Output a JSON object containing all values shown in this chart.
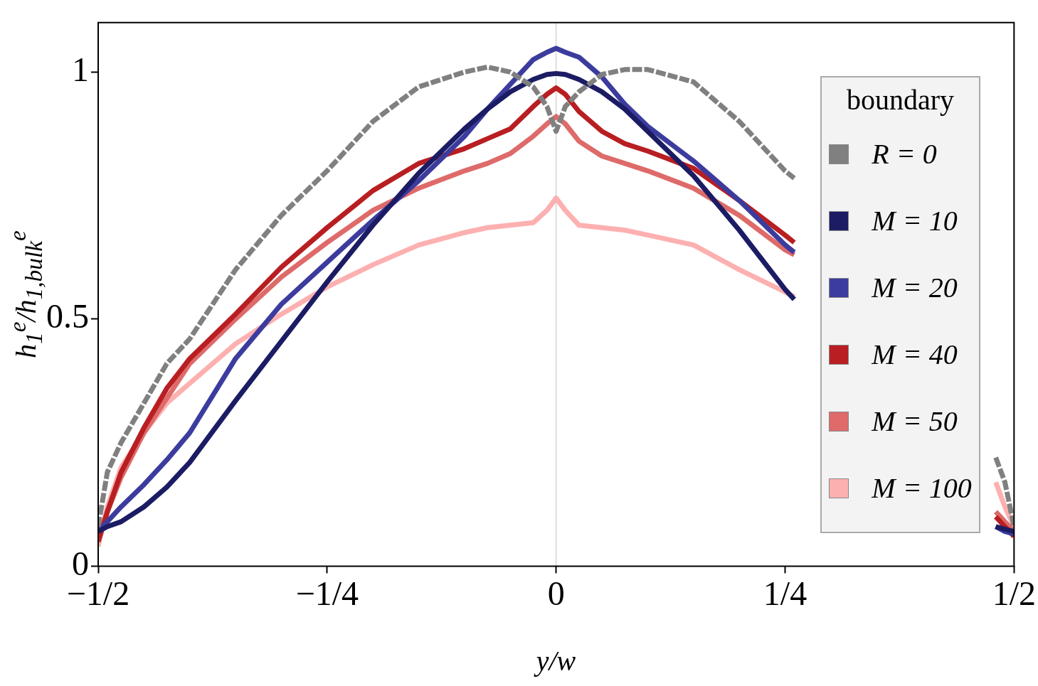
{
  "chart_data": {
    "type": "line",
    "xlabel": "y/w",
    "ylabel": "h$_{1}$$^{e}$/h$_{1,bulk}$$^{e}$",
    "legend_title": "boundary",
    "legend": "right",
    "grid": false,
    "marker": "none",
    "line_style": "solid",
    "xlim": [
      -0.5,
      0.5
    ],
    "xticks": [
      {
        "value": -0.5,
        "label": "−1/2"
      },
      {
        "value": -0.25,
        "label": "−1/4"
      },
      0,
      {
        "value": 0.25,
        "label": "1/4"
      },
      {
        "value": 0.5,
        "label": "1/2"
      }
    ],
    "ylim": [
      0,
      1.1
    ],
    "yticks": [
      0,
      0.5,
      1
    ],
    "ref_lines": [
      {
        "axis": "x",
        "value": 0,
        "color": "#cccccc"
      }
    ],
    "x": [
      -0.5,
      -0.49,
      -0.475,
      -0.45,
      -0.425,
      -0.4,
      -0.35,
      -0.3,
      -0.25,
      -0.2,
      -0.15,
      -0.1,
      -0.075,
      -0.05,
      -0.025,
      -0.01,
      0,
      0.01,
      0.025,
      0.05,
      0.075,
      0.1,
      0.15,
      0.2,
      0.25,
      0.26,
      0.3,
      0.45,
      0.48,
      0.49,
      0.5
    ],
    "series": [
      {
        "name": "R = 0",
        "color": "#808080",
        "line_style": "dashed",
        "values": [
          0.08,
          0.19,
          0.25,
          0.33,
          0.41,
          0.46,
          0.6,
          0.71,
          0.8,
          0.9,
          0.97,
          1.0,
          1.01,
          1.0,
          0.97,
          0.93,
          0.88,
          0.93,
          0.96,
          0.995,
          1.005,
          1.005,
          0.98,
          0.9,
          0.8,
          0.785,
          null,
          null,
          0.22,
          0.17,
          0.08
        ]
      },
      {
        "name": "M = 10",
        "color": "#1c1c64",
        "values": [
          0.07,
          0.08,
          0.09,
          0.12,
          0.16,
          0.21,
          0.335,
          0.455,
          0.575,
          0.69,
          0.795,
          0.885,
          0.925,
          0.96,
          0.985,
          0.995,
          0.997,
          0.995,
          0.985,
          0.96,
          0.925,
          0.88,
          0.79,
          0.68,
          0.56,
          0.54,
          null,
          null,
          0.08,
          0.075,
          0.07
        ]
      },
      {
        "name": "M = 20",
        "color": "#3c3c9e",
        "values": [
          0.07,
          0.09,
          0.12,
          0.165,
          0.215,
          0.27,
          0.42,
          0.53,
          0.615,
          0.7,
          0.78,
          0.87,
          0.925,
          0.975,
          1.025,
          1.04,
          1.048,
          1.04,
          1.03,
          0.99,
          0.935,
          0.89,
          0.82,
          0.74,
          0.65,
          0.635,
          null,
          null,
          0.08,
          0.07,
          0.065
        ]
      },
      {
        "name": "M = 40",
        "color": "#b81e22",
        "values": [
          0.05,
          0.11,
          0.19,
          0.28,
          0.36,
          0.42,
          0.51,
          0.605,
          0.685,
          0.76,
          0.815,
          0.845,
          0.865,
          0.885,
          0.93,
          0.955,
          0.968,
          0.955,
          0.92,
          0.88,
          0.855,
          0.84,
          0.805,
          0.74,
          0.67,
          0.655,
          null,
          null,
          0.1,
          0.08,
          0.06
        ]
      },
      {
        "name": "M = 50",
        "color": "#de6a6a",
        "values": [
          0.05,
          0.11,
          0.18,
          0.27,
          0.34,
          0.41,
          0.5,
          0.585,
          0.655,
          0.72,
          0.765,
          0.8,
          0.815,
          0.835,
          0.87,
          0.895,
          0.91,
          0.895,
          0.86,
          0.83,
          0.815,
          0.8,
          0.765,
          0.71,
          0.64,
          0.63,
          null,
          null,
          0.11,
          0.09,
          0.07
        ]
      },
      {
        "name": "M = 100",
        "color": "#fdb0b0",
        "values": [
          0.04,
          0.12,
          0.2,
          0.27,
          0.33,
          0.37,
          0.45,
          0.51,
          0.565,
          0.61,
          0.65,
          0.675,
          0.685,
          0.69,
          0.695,
          0.72,
          0.745,
          0.72,
          0.69,
          0.685,
          0.68,
          0.67,
          0.65,
          0.6,
          0.555,
          0.545,
          null,
          null,
          0.17,
          0.12,
          0.08
        ]
      }
    ]
  }
}
